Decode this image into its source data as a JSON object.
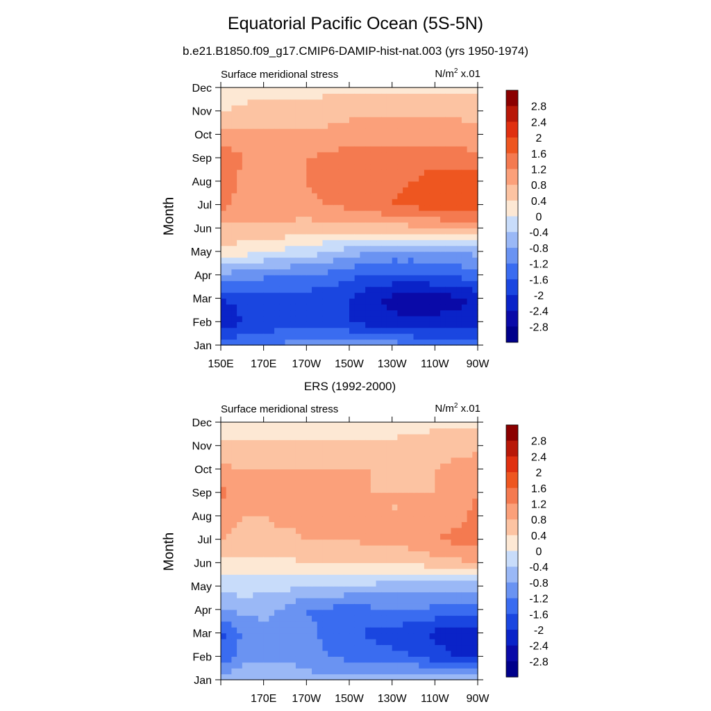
{
  "title": "Equatorial Pacific Ocean (5S-5N)",
  "subtitle": "b.e21.B1850.f09_g17.CMIP6-DAMIP-hist-nat.003 (yrs 1950-1974)",
  "colors": {
    "levels": [
      "#00008b",
      "#0a0aa8",
      "#0a23c8",
      "#1a46e0",
      "#3a6cf0",
      "#6a93f2",
      "#9ab8f6",
      "#c8dcfa",
      "#fde8d4",
      "#fcc3a2",
      "#fba07a",
      "#f47a50",
      "#ee5620",
      "#e03010",
      "#b81808",
      "#8b0000"
    ]
  },
  "panels": [
    {
      "id": "model",
      "panel_title": "",
      "left_label": "Surface meridional stress",
      "units_base": "N/m",
      "units_sup": "2",
      "units_suffix": " x.01",
      "ylabel": "Month",
      "x_tick_labels": [
        "150E",
        "170E",
        "170W",
        "150W",
        "130W",
        "110W",
        "90W"
      ],
      "y_tick_labels": [
        "Jan",
        "Feb",
        "Mar",
        "Apr",
        "May",
        "Jun",
        "Jul",
        "Aug",
        "Sep",
        "Oct",
        "Nov",
        "Dec"
      ]
    },
    {
      "id": "ers",
      "panel_title": "ERS (1992-2000)",
      "left_label": "Surface meridional stress",
      "units_base": "N/m",
      "units_sup": "2",
      "units_suffix": " x.01",
      "ylabel": "Month",
      "x_tick_labels": [
        "",
        "170E",
        "170W",
        "150W",
        "130W",
        "110W",
        "90W"
      ],
      "y_tick_labels": [
        "Jan",
        "Feb",
        "Mar",
        "Apr",
        "May",
        "Jun",
        "Jul",
        "Aug",
        "Sep",
        "Oct",
        "Nov",
        "Dec"
      ]
    }
  ],
  "colorbar": {
    "labels": [
      "2.8",
      "2.4",
      "2",
      "1.6",
      "1.2",
      "0.8",
      "0.4",
      "0",
      "-0.4",
      "-0.8",
      "-1.2",
      "-1.6",
      "-2",
      "-2.4",
      "-2.8"
    ]
  },
  "chart_data": [
    {
      "type": "heatmap",
      "title": "Equatorial Pacific Ocean (5S-5N)",
      "subtitle": "b.e21.B1850.f09_g17.CMIP6-DAMIP-hist-nat.003 (yrs 1950-1974)",
      "variable": "Surface meridional stress",
      "units": "N/m2 x.01",
      "xlabel": "",
      "ylabel": "Month",
      "x": [
        150,
        160,
        170,
        180,
        190,
        200,
        210,
        220,
        230,
        240,
        250,
        260,
        270
      ],
      "x_tick_labels": [
        "150E",
        "170E",
        "170W",
        "150W",
        "130W",
        "110W",
        "90W"
      ],
      "xlim": [
        150,
        270
      ],
      "y": [
        "Jan",
        "Feb",
        "Mar",
        "Apr",
        "May",
        "Jun",
        "Jul",
        "Aug",
        "Sep",
        "Oct",
        "Nov",
        "Dec"
      ],
      "levels": [
        -2.8,
        -2.4,
        -2,
        -1.6,
        -1.2,
        -0.8,
        -0.4,
        0,
        0.4,
        0.8,
        1.2,
        1.6,
        2,
        2.4,
        2.8
      ],
      "z": [
        [
          -1.3,
          -1.3,
          -1.2,
          -1.1,
          -1.0,
          -0.9,
          -0.9,
          -0.9,
          -1.0,
          -1.2,
          -1.3,
          -1.4,
          -1.4
        ],
        [
          -2.4,
          -2.0,
          -2.0,
          -1.8,
          -1.8,
          -1.9,
          -2.0,
          -2.2,
          -2.3,
          -2.3,
          -2.3,
          -2.3,
          -2.3
        ],
        [
          -2.0,
          -1.9,
          -1.9,
          -1.8,
          -1.8,
          -1.9,
          -2.0,
          -2.3,
          -2.5,
          -2.7,
          -2.6,
          -2.5,
          -2.3
        ],
        [
          -0.9,
          -1.0,
          -1.1,
          -1.2,
          -1.2,
          -1.3,
          -1.5,
          -1.7,
          -1.7,
          -1.7,
          -1.6,
          -1.5,
          -1.4
        ],
        [
          0.3,
          0.2,
          0.0,
          -0.1,
          -0.2,
          -0.4,
          -0.6,
          -0.8,
          -0.9,
          -0.9,
          -0.9,
          -0.8,
          -0.7
        ],
        [
          0.7,
          0.7,
          0.7,
          0.7,
          0.6,
          0.6,
          0.6,
          0.6,
          0.6,
          0.7,
          0.8,
          0.9,
          0.9
        ],
        [
          1.4,
          1.0,
          1.0,
          1.0,
          1.1,
          1.2,
          1.3,
          1.5,
          1.6,
          1.7,
          1.8,
          1.9,
          1.8
        ],
        [
          1.5,
          1.1,
          1.1,
          1.1,
          1.2,
          1.3,
          1.5,
          1.5,
          1.5,
          1.6,
          1.8,
          1.9,
          1.8
        ],
        [
          1.6,
          1.2,
          1.2,
          1.2,
          1.2,
          1.3,
          1.4,
          1.4,
          1.4,
          1.4,
          1.4,
          1.4,
          1.3
        ],
        [
          0.9,
          0.9,
          0.9,
          0.9,
          0.9,
          0.9,
          1.0,
          1.0,
          1.0,
          1.0,
          1.0,
          1.0,
          0.9
        ],
        [
          0.4,
          0.5,
          0.5,
          0.5,
          0.5,
          0.6,
          0.7,
          0.7,
          0.7,
          0.7,
          0.7,
          0.7,
          0.7
        ],
        [
          0.0,
          0.2,
          0.3,
          0.3,
          0.3,
          0.3,
          0.3,
          0.3,
          0.3,
          0.3,
          0.3,
          0.3,
          0.3
        ]
      ]
    },
    {
      "type": "heatmap",
      "title": "ERS (1992-2000)",
      "variable": "Surface meridional stress",
      "units": "N/m2 x.01",
      "xlabel": "",
      "ylabel": "Month",
      "x": [
        150,
        160,
        170,
        180,
        190,
        200,
        210,
        220,
        230,
        240,
        250,
        260,
        270
      ],
      "x_tick_labels": [
        "170E",
        "170W",
        "150W",
        "130W",
        "110W",
        "90W"
      ],
      "xlim": [
        150,
        270
      ],
      "y": [
        "Jan",
        "Feb",
        "Mar",
        "Apr",
        "May",
        "Jun",
        "Jul",
        "Aug",
        "Sep",
        "Oct",
        "Nov",
        "Dec"
      ],
      "levels": [
        -2.8,
        -2.4,
        -2,
        -1.6,
        -1.2,
        -0.8,
        -0.4,
        0,
        0.4,
        0.8,
        1.2,
        1.6,
        2,
        2.4,
        2.8
      ],
      "z": [
        [
          -0.6,
          -0.5,
          -0.4,
          -0.5,
          -0.6,
          -0.7,
          -0.6,
          -0.5,
          -0.4,
          -0.4,
          -0.5,
          -0.6,
          -0.6
        ],
        [
          -1.5,
          -1.0,
          -0.9,
          -0.9,
          -1.0,
          -1.2,
          -1.3,
          -1.4,
          -1.5,
          -1.6,
          -1.8,
          -2.0,
          -2.0
        ],
        [
          -1.7,
          -1.2,
          -1.0,
          -1.0,
          -1.1,
          -1.3,
          -1.5,
          -1.7,
          -1.8,
          -1.9,
          -2.1,
          -2.3,
          -2.1
        ],
        [
          -0.8,
          -0.7,
          -0.6,
          -0.9,
          -1.2,
          -1.3,
          -1.4,
          -1.3,
          -1.2,
          -1.2,
          -1.3,
          -1.4,
          -1.3
        ],
        [
          -0.2,
          -0.2,
          -0.3,
          -0.3,
          -0.4,
          -0.4,
          -0.5,
          -0.5,
          -0.6,
          -0.6,
          -0.7,
          -0.7,
          -0.6
        ],
        [
          0.3,
          0.3,
          0.3,
          0.3,
          0.4,
          0.4,
          0.4,
          0.5,
          0.5,
          0.5,
          0.6,
          0.7,
          0.9
        ],
        [
          0.8,
          0.7,
          0.7,
          0.7,
          0.8,
          0.8,
          0.8,
          0.9,
          0.9,
          1.0,
          1.2,
          1.3,
          1.3
        ],
        [
          1.0,
          0.8,
          0.8,
          0.9,
          0.9,
          0.9,
          0.9,
          0.9,
          0.8,
          0.8,
          0.9,
          1.1,
          1.3
        ],
        [
          1.3,
          1.0,
          0.9,
          1.0,
          1.0,
          0.9,
          0.9,
          0.8,
          0.8,
          0.8,
          0.8,
          0.9,
          1.2
        ],
        [
          0.9,
          0.8,
          0.8,
          0.8,
          0.8,
          0.8,
          0.8,
          0.8,
          0.7,
          0.7,
          0.8,
          0.9,
          1.0
        ],
        [
          0.5,
          0.5,
          0.5,
          0.5,
          0.5,
          0.5,
          0.5,
          0.5,
          0.5,
          0.5,
          0.6,
          0.7,
          0.7
        ],
        [
          0.0,
          0.1,
          0.1,
          0.1,
          0.1,
          0.1,
          0.1,
          0.1,
          0.2,
          0.3,
          0.3,
          0.3,
          0.3
        ]
      ]
    }
  ]
}
